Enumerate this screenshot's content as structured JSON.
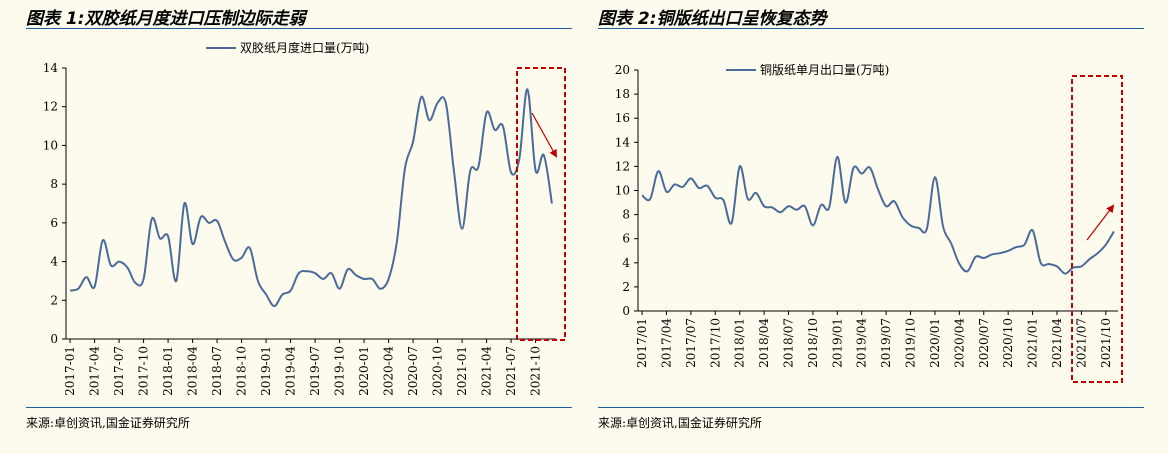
{
  "charts": [
    {
      "title": "图表 1:双胶纸月度进口压制边际走弱",
      "source": "来源:卓创资讯,国金证券研究所"
    },
    {
      "title": "图表 2:铜版纸出口呈恢复态势",
      "source": "来源:卓创资讯,国金证券研究所"
    }
  ],
  "chart_data": [
    {
      "type": "line",
      "title": "",
      "xlabel": "",
      "ylabel": "",
      "ylim": [
        0,
        14
      ],
      "yticks": [
        "0",
        "2",
        "4",
        "6",
        "8",
        "10",
        "12",
        "14"
      ],
      "grid": false,
      "legend": "top-center",
      "line_color": "#4a6a9a",
      "highlight_color": "#c00000",
      "tick_labels": [
        "2017-01",
        "2017-04",
        "2017-07",
        "2017-10",
        "2018-01",
        "2018-04",
        "2018-07",
        "2018-10",
        "2019-01",
        "2019-04",
        "2019-07",
        "2019-10",
        "2020-01",
        "2020-04",
        "2020-07",
        "2020-10",
        "2021-01",
        "2021-04",
        "2021-07",
        "2021-10"
      ],
      "series": [
        {
          "name": "双胶纸月度进口量(万吨)",
          "values": [
            2.5,
            2.6,
            3.2,
            2.7,
            5.1,
            3.8,
            4.0,
            3.7,
            2.9,
            3.1,
            6.2,
            5.2,
            5.3,
            3.0,
            7.0,
            4.9,
            6.3,
            6.0,
            6.1,
            5.0,
            4.1,
            4.2,
            4.7,
            3.0,
            2.3,
            1.7,
            2.3,
            2.5,
            3.4,
            3.5,
            3.4,
            3.1,
            3.4,
            2.6,
            3.6,
            3.3,
            3.1,
            3.1,
            2.6,
            3.1,
            5.0,
            8.8,
            10.2,
            12.5,
            11.3,
            12.2,
            12.2,
            8.7,
            5.7,
            8.7,
            8.9,
            11.7,
            10.8,
            11.0,
            8.6,
            9.3,
            12.9,
            8.7,
            9.5,
            7.0
          ]
        }
      ]
    },
    {
      "type": "line",
      "title": "",
      "xlabel": "",
      "ylabel": "",
      "ylim": [
        0,
        20
      ],
      "yticks": [
        "0",
        "2",
        "4",
        "6",
        "8",
        "10",
        "12",
        "14",
        "16",
        "18",
        "20"
      ],
      "grid": false,
      "legend": "top-center",
      "line_color": "#4a6a9a",
      "highlight_color": "#c00000",
      "tick_labels": [
        "2017/01",
        "2017/04",
        "2017/07",
        "2017/10",
        "2018/01",
        "2018/04",
        "2018/07",
        "2018/10",
        "2019/01",
        "2019/04",
        "2019/07",
        "2019/10",
        "2020/01",
        "2020/04",
        "2020/07",
        "2020/10",
        "2021/01",
        "2021/04",
        "2021/07",
        "2021/10"
      ],
      "series": [
        {
          "name": "铜版纸单月出口量(万吨)",
          "values": [
            9.6,
            9.3,
            11.6,
            9.9,
            10.5,
            10.3,
            11.0,
            10.2,
            10.4,
            9.4,
            9.2,
            7.3,
            12.0,
            9.3,
            9.8,
            8.7,
            8.6,
            8.2,
            8.7,
            8.4,
            8.7,
            7.1,
            8.8,
            8.6,
            12.8,
            9.0,
            11.9,
            11.4,
            11.9,
            10.1,
            8.7,
            9.1,
            7.8,
            7.1,
            6.9,
            6.8,
            11.1,
            7.0,
            5.6,
            3.9,
            3.3,
            4.5,
            4.4,
            4.7,
            4.8,
            5.0,
            5.3,
            5.5,
            6.7,
            4.0,
            3.9,
            3.7,
            3.1,
            3.6,
            3.7,
            4.3,
            4.8,
            5.5,
            6.6
          ]
        }
      ]
    }
  ]
}
